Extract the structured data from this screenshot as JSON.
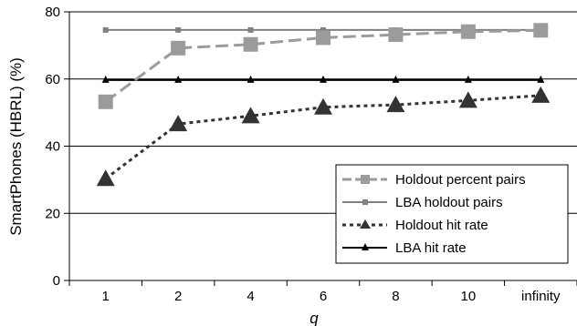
{
  "chart_data": {
    "type": "line",
    "title": "",
    "xlabel": "q",
    "ylabel": "SmartPhones (HBRL) (%)",
    "categories": [
      "1",
      "2",
      "4",
      "6",
      "8",
      "10",
      "infinity"
    ],
    "ylim": [
      0,
      80
    ],
    "yticks": [
      0,
      20,
      40,
      60,
      80
    ],
    "grid": "horizontal",
    "legend_position": "bottom-right",
    "series": [
      {
        "name": "Holdout percent pairs",
        "values": [
          53.2,
          69.2,
          70.3,
          72.3,
          73.2,
          74.1,
          74.5
        ],
        "color": "#9b9b9b",
        "line_style": "long-dash",
        "marker": "square"
      },
      {
        "name": "LBA holdout pairs",
        "values": [
          74.6,
          74.6,
          74.6,
          74.6,
          74.6,
          74.6,
          74.6
        ],
        "color": "#808080",
        "line_style": "solid",
        "marker": "small-square"
      },
      {
        "name": "Holdout hit rate",
        "values": [
          30.3,
          46.6,
          49.0,
          51.6,
          52.3,
          53.6,
          55.1
        ],
        "color": "#333333",
        "line_style": "short-dash",
        "marker": "triangle"
      },
      {
        "name": "LBA hit rate",
        "values": [
          59.7,
          59.7,
          59.7,
          59.7,
          59.7,
          59.7,
          59.7
        ],
        "color": "#000000",
        "line_style": "solid",
        "marker": "small-triangle"
      }
    ]
  }
}
